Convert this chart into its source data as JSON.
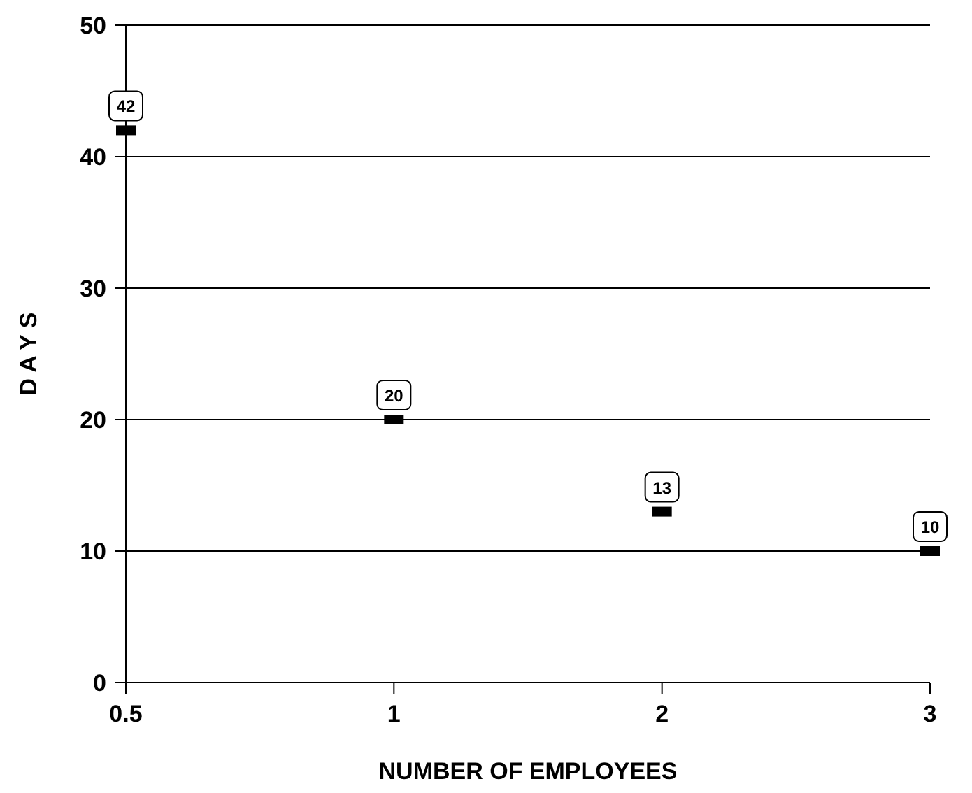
{
  "chart_data": {
    "type": "scatter",
    "xlabel": "NUMBER OF EMPLOYEES",
    "ylabel": "D A Y S",
    "categories": [
      "0.5",
      "1",
      "2",
      "3"
    ],
    "values": [
      42,
      20,
      13,
      10
    ],
    "color": "#000000",
    "ylim": [
      0,
      50
    ],
    "yticks": [
      0,
      10,
      20,
      30,
      40,
      50
    ],
    "grid": "y",
    "marker": "square",
    "data_labels": true
  }
}
